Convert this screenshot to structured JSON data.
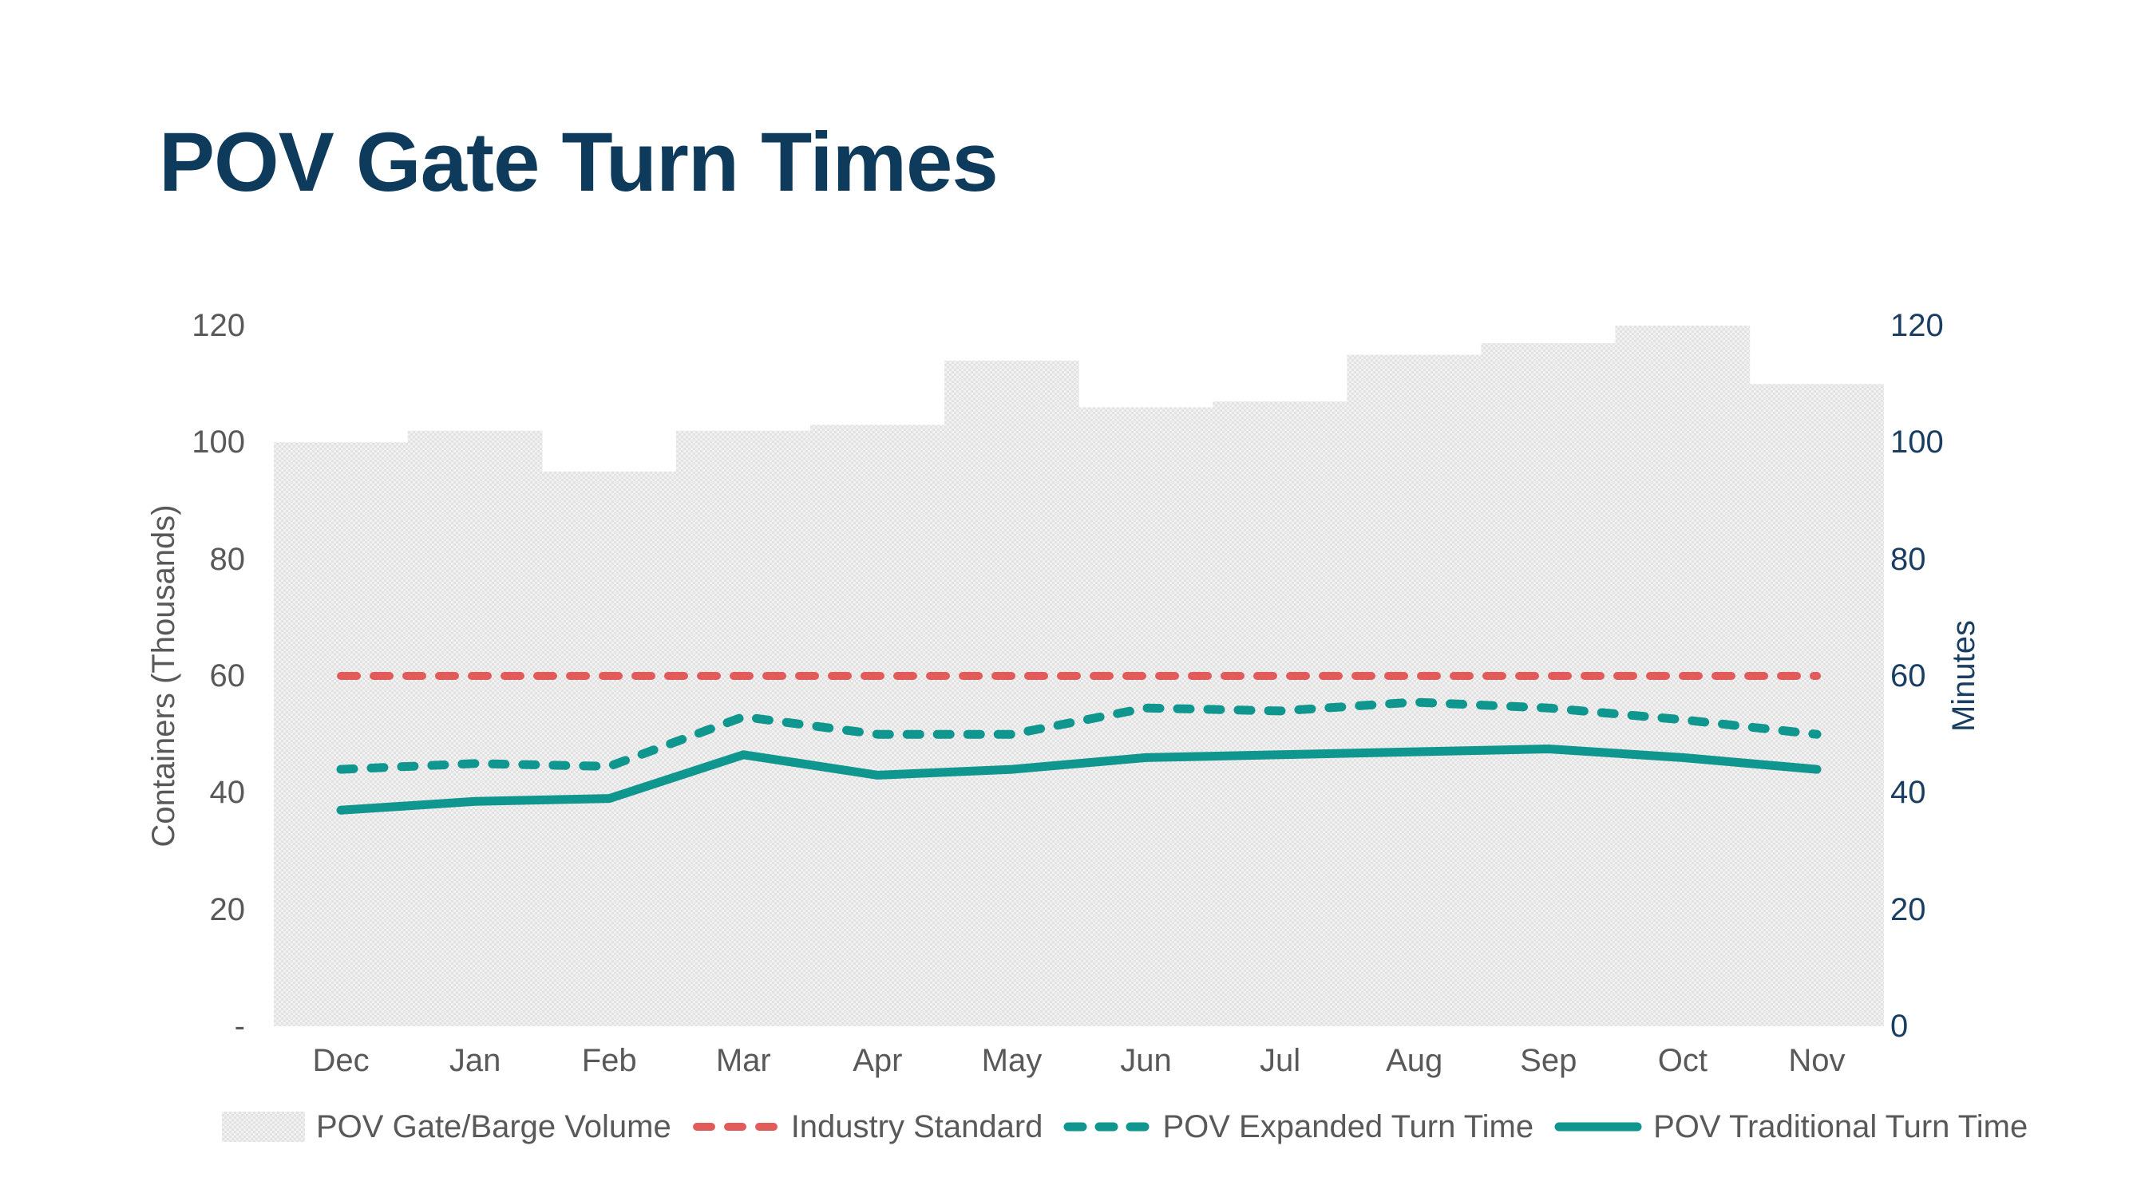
{
  "title": {
    "text": "POV Gate Turn Times"
  },
  "colors": {
    "background": "#ffffff",
    "title_navy": "#0e3a5c",
    "axis_gray": "#595959",
    "right_axis_navy": "#1a3e62",
    "bar_fill": "#eaeaea",
    "bar_fill_dark": "#e2e2e2",
    "bar_fill_light": "#f1f1f1",
    "industry_red": "#e15b5b",
    "teal": "#0f968e"
  },
  "chart_data": {
    "type": "combo",
    "categories": [
      "Dec",
      "Jan",
      "Feb",
      "Mar",
      "Apr",
      "May",
      "Jun",
      "Jul",
      "Aug",
      "Sep",
      "Oct",
      "Nov"
    ],
    "series": [
      {
        "name": "POV Gate/Barge Volume",
        "type": "bar",
        "axis": "left",
        "color": "#eaeaea",
        "values": [
          100,
          102,
          95,
          102,
          103,
          114,
          106,
          107,
          115,
          117,
          120,
          110
        ]
      },
      {
        "name": "Industry Standard",
        "type": "line",
        "line_style": "dashed",
        "axis": "right",
        "color": "#e15b5b",
        "values": [
          60,
          60,
          60,
          60,
          60,
          60,
          60,
          60,
          60,
          60,
          60,
          60
        ]
      },
      {
        "name": "POV Expanded Turn Time",
        "type": "line",
        "line_style": "dashed",
        "axis": "right",
        "color": "#0f968e",
        "values": [
          44,
          45,
          44.5,
          53,
          50,
          50,
          54.5,
          54,
          55.5,
          54.5,
          52.5,
          50
        ]
      },
      {
        "name": "POV Traditional Turn Time",
        "type": "line",
        "line_style": "solid",
        "axis": "right",
        "color": "#0f968e",
        "values": [
          37,
          38.5,
          39,
          46.5,
          43,
          44,
          46,
          46.5,
          47,
          47.5,
          46,
          44
        ]
      }
    ],
    "left_axis": {
      "title": "Containers (Thousands)",
      "min": 0,
      "max": 120,
      "tick_step": 20,
      "tick_labels": [
        "120",
        "100",
        "80",
        "60",
        "40",
        "20",
        "-"
      ]
    },
    "right_axis": {
      "title": "Minutes",
      "min": 0,
      "max": 120,
      "tick_step": 20,
      "tick_labels": [
        "120",
        "100",
        "80",
        "60",
        "40",
        "20",
        "0"
      ]
    },
    "legend_position": "bottom",
    "gridlines": false
  }
}
